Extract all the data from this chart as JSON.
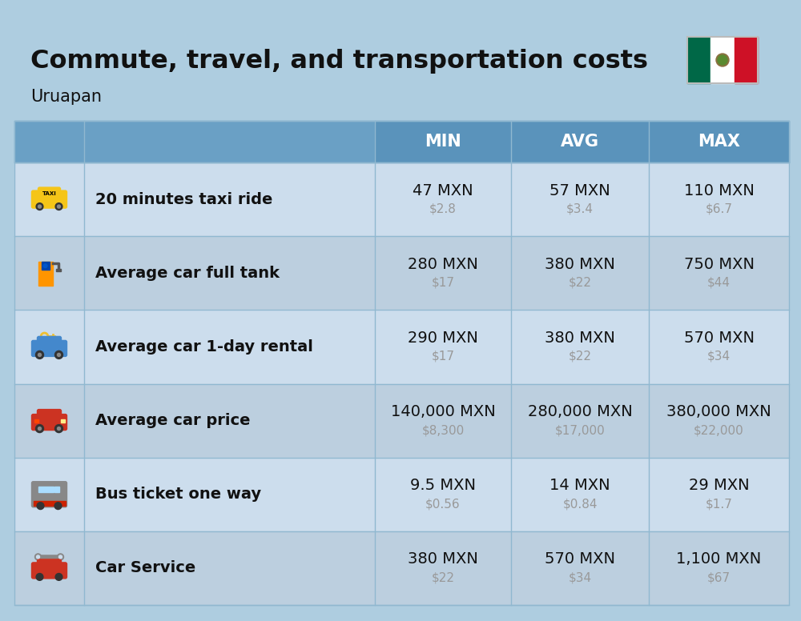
{
  "title": "Commute, travel, and transportation costs",
  "subtitle": "Uruapan",
  "bg_color": "#aecde0",
  "header_bg": "#5a93bb",
  "header_text_color": "#ffffff",
  "row_colors": [
    "#ccdded",
    "#bccfdf"
  ],
  "grid_line_color": "#90b8d0",
  "text_dark": "#111111",
  "usd_color": "#999999",
  "columns": [
    "MIN",
    "AVG",
    "MAX"
  ],
  "rows": [
    {
      "label": "20 minutes taxi ride",
      "min_mxn": "47 MXN",
      "min_usd": "$2.8",
      "avg_mxn": "57 MXN",
      "avg_usd": "$3.4",
      "max_mxn": "110 MXN",
      "max_usd": "$6.7"
    },
    {
      "label": "Average car full tank",
      "min_mxn": "280 MXN",
      "min_usd": "$17",
      "avg_mxn": "380 MXN",
      "avg_usd": "$22",
      "max_mxn": "750 MXN",
      "max_usd": "$44"
    },
    {
      "label": "Average car 1-day rental",
      "min_mxn": "290 MXN",
      "min_usd": "$17",
      "avg_mxn": "380 MXN",
      "avg_usd": "$22",
      "max_mxn": "570 MXN",
      "max_usd": "$34"
    },
    {
      "label": "Average car price",
      "min_mxn": "140,000 MXN",
      "min_usd": "$8,300",
      "avg_mxn": "280,000 MXN",
      "avg_usd": "$17,000",
      "max_mxn": "380,000 MXN",
      "max_usd": "$22,000"
    },
    {
      "label": "Bus ticket one way",
      "min_mxn": "9.5 MXN",
      "min_usd": "$0.56",
      "avg_mxn": "14 MXN",
      "avg_usd": "$0.84",
      "max_mxn": "29 MXN",
      "max_usd": "$1.7"
    },
    {
      "label": "Car Service",
      "min_mxn": "380 MXN",
      "min_usd": "$22",
      "avg_mxn": "570 MXN",
      "avg_usd": "$34",
      "max_mxn": "1,100 MXN",
      "max_usd": "$67"
    }
  ],
  "title_fontsize": 23,
  "subtitle_fontsize": 15,
  "header_fontsize": 15,
  "label_fontsize": 14,
  "value_fontsize": 14,
  "usd_fontsize": 11,
  "flag_green": "#006847",
  "flag_white": "#ffffff",
  "flag_red": "#ce1126"
}
